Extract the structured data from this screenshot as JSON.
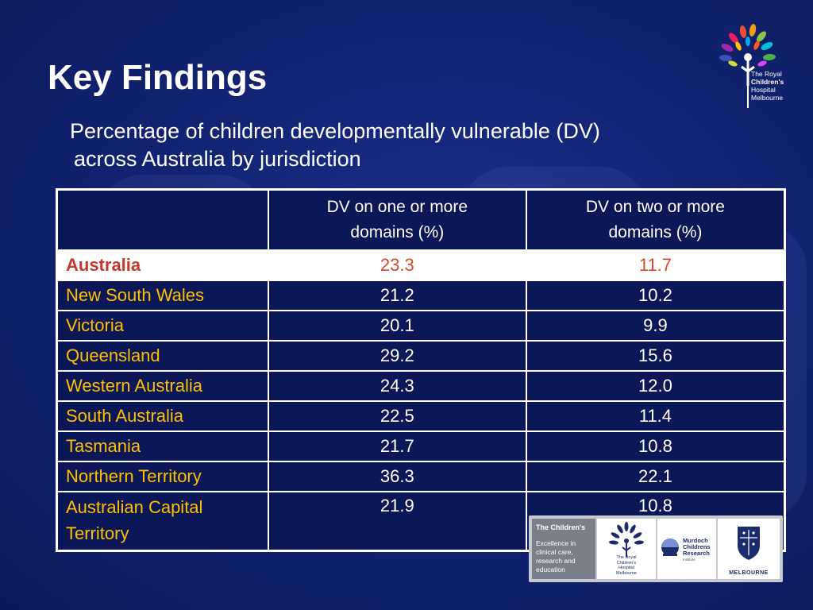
{
  "slide": {
    "title": "Key Findings",
    "subtitle_line1": "Percentage of children developmentally vulnerable (DV)",
    "subtitle_line2": "across Australia by jurisdiction"
  },
  "corner_logo": {
    "line1": "The Royal",
    "line2": "Children's",
    "line3": "Hospital",
    "line4": "Melbourne"
  },
  "table": {
    "columns": [
      "",
      [
        "DV on one or more",
        "domains (%)"
      ],
      [
        "DV on two or more",
        "domains (%)"
      ]
    ],
    "rows": [
      {
        "region": "Australia",
        "one_or_more": "23.3",
        "two_or_more": "11.7"
      },
      {
        "region": "New South Wales",
        "one_or_more": "21.2",
        "two_or_more": "10.2"
      },
      {
        "region": "Victoria",
        "one_or_more": "20.1",
        "two_or_more": "9.9"
      },
      {
        "region": "Queensland",
        "one_or_more": "29.2",
        "two_or_more": "15.6"
      },
      {
        "region": "Western Australia",
        "one_or_more": "24.3",
        "two_or_more": "12.0"
      },
      {
        "region": "South Australia",
        "one_or_more": "22.5",
        "two_or_more": "11.4"
      },
      {
        "region": "Tasmania",
        "one_or_more": "21.7",
        "two_or_more": "10.8"
      },
      {
        "region": "Northern Territory",
        "one_or_more": "36.3",
        "two_or_more": "22.1"
      },
      {
        "region": "Australian Capital Territory",
        "one_or_more": "21.9",
        "two_or_more": "10.8"
      }
    ]
  },
  "partners": {
    "campus_title": "The Children's",
    "tagline_line1": "Excellence in",
    "tagline_line2": "clinical care,",
    "tagline_line3": "research and",
    "tagline_line4": "education",
    "rch_caption_line1": "The Royal",
    "rch_caption_line2": "Children's",
    "rch_caption_line3": "Hospital",
    "rch_caption_line4": "Melbourne",
    "mcri_line1": "Murdoch",
    "mcri_line2": "Childrens",
    "mcri_line3": "Research",
    "mcri_line4": "Institute",
    "uom_caption": "MELBOURNE"
  }
}
